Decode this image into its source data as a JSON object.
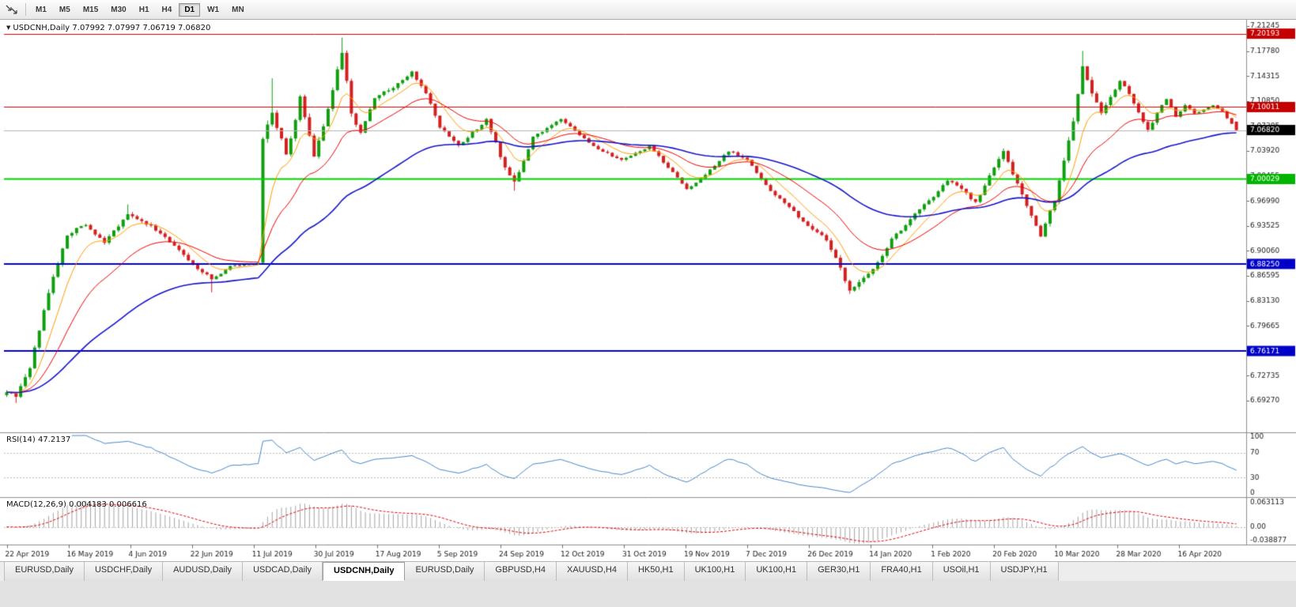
{
  "toolbar": {
    "timeframes": [
      {
        "label": "M1",
        "active": false
      },
      {
        "label": "M5",
        "active": false
      },
      {
        "label": "M15",
        "active": false
      },
      {
        "label": "M30",
        "active": false
      },
      {
        "label": "H1",
        "active": false
      },
      {
        "label": "H4",
        "active": false
      },
      {
        "label": "D1",
        "active": true
      },
      {
        "label": "W1",
        "active": false
      },
      {
        "label": "MN",
        "active": false
      }
    ]
  },
  "chart_data": {
    "type": "candlestick",
    "symbol": "USDCNH",
    "period": "Daily",
    "ohlc_title": "USDCNH,Daily 7.07992 7.07997 7.06719 7.06820",
    "ohlc": {
      "open": 7.07992,
      "high": 7.07997,
      "low": 7.06719,
      "close": 7.0682
    },
    "price_axis_ticks": [
      "7.21245",
      "7.17780",
      "7.14315",
      "7.10850",
      "7.07385",
      "7.03920",
      "7.00455",
      "6.96990",
      "6.93525",
      "6.90060",
      "6.86595",
      "6.83130",
      "6.79665",
      "6.76200",
      "6.72735",
      "6.69270"
    ],
    "price_badges": [
      {
        "text": "7.20193",
        "price": 7.20193,
        "bg": "#c40000"
      },
      {
        "text": "7.10011",
        "price": 7.10011,
        "bg": "#c40000"
      },
      {
        "text": "7.06820",
        "price": 7.0682,
        "bg": "#000000"
      },
      {
        "text": "7.00029",
        "price": 7.00029,
        "bg": "#00b400"
      },
      {
        "text": "6.88250",
        "price": 6.8825,
        "bg": "#0000c8"
      },
      {
        "text": "6.76171",
        "price": 6.76171,
        "bg": "#0000c8"
      }
    ],
    "horizontal_lines": [
      {
        "price": 7.20193,
        "color": "#d40000",
        "width": 1
      },
      {
        "price": 7.10011,
        "color": "#d40000",
        "width": 1
      },
      {
        "price": 7.00029,
        "color": "#00d400",
        "width": 2
      },
      {
        "price": 6.8825,
        "color": "#0000d4",
        "width": 2
      },
      {
        "price": 6.76171,
        "color": "#0000d4",
        "width": 2
      }
    ],
    "current_price_line": {
      "price": 7.0682,
      "color": "#b4b4b4"
    },
    "date_labels": [
      "22 Apr 2019",
      "16 May 2019",
      "4 Jun 2019",
      "22 Jun 2019",
      "11 Jul 2019",
      "30 Jul 2019",
      "17 Aug 2019",
      "5 Sep 2019",
      "24 Sep 2019",
      "12 Oct 2019",
      "31 Oct 2019",
      "19 Nov 2019",
      "7 Dec 2019",
      "26 Dec 2019",
      "14 Jan 2020",
      "1 Feb 2020",
      "20 Feb 2020",
      "10 Mar 2020",
      "28 Mar 2020",
      "16 Apr 2020"
    ],
    "candles": {
      "count": 265,
      "seed": 7,
      "up_color": "#0f9e0f",
      "down_color": "#d41f1f",
      "close_waypoints": [
        [
          0,
          6.706,
          0.005
        ],
        [
          2,
          6.699,
          0.005
        ],
        [
          5,
          6.738,
          0.006
        ],
        [
          9,
          6.845,
          0.007
        ],
        [
          13,
          6.923,
          0.005
        ],
        [
          17,
          6.938,
          0.004
        ],
        [
          21,
          6.912,
          0.004
        ],
        [
          26,
          6.952,
          0.004
        ],
        [
          31,
          6.935,
          0.004
        ],
        [
          36,
          6.907,
          0.005
        ],
        [
          40,
          6.882,
          0.004
        ],
        [
          44,
          6.861,
          0.004
        ],
        [
          48,
          6.879,
          0.002
        ],
        [
          54,
          6.884,
          0.002
        ],
        [
          55,
          7.058,
          0.007
        ],
        [
          57,
          7.095,
          0.008
        ],
        [
          60,
          7.032,
          0.008
        ],
        [
          63,
          7.112,
          0.007
        ],
        [
          66,
          7.032,
          0.007
        ],
        [
          69,
          7.098,
          0.006
        ],
        [
          72,
          7.178,
          0.006
        ],
        [
          74,
          7.092,
          0.007
        ],
        [
          76,
          7.062,
          0.006
        ],
        [
          79,
          7.112,
          0.005
        ],
        [
          83,
          7.128,
          0.004
        ],
        [
          87,
          7.148,
          0.004
        ],
        [
          90,
          7.12,
          0.004
        ],
        [
          93,
          7.072,
          0.004
        ],
        [
          97,
          7.046,
          0.004
        ],
        [
          103,
          7.083,
          0.004
        ],
        [
          107,
          7.016,
          0.005
        ],
        [
          109,
          6.996,
          0.005
        ],
        [
          113,
          7.058,
          0.004
        ],
        [
          119,
          7.084,
          0.003
        ],
        [
          126,
          7.046,
          0.003
        ],
        [
          132,
          7.026,
          0.003
        ],
        [
          138,
          7.046,
          0.003
        ],
        [
          143,
          7.009,
          0.003
        ],
        [
          146,
          6.986,
          0.003
        ],
        [
          150,
          7.006,
          0.003
        ],
        [
          155,
          7.039,
          0.003
        ],
        [
          159,
          7.028,
          0.003
        ],
        [
          163,
          6.991,
          0.003
        ],
        [
          168,
          6.961,
          0.003
        ],
        [
          172,
          6.936,
          0.004
        ],
        [
          176,
          6.916,
          0.004
        ],
        [
          179,
          6.876,
          0.005
        ],
        [
          181,
          6.846,
          0.005
        ],
        [
          183,
          6.857,
          0.005
        ],
        [
          186,
          6.874,
          0.004
        ],
        [
          190,
          6.916,
          0.004
        ],
        [
          196,
          6.958,
          0.004
        ],
        [
          199,
          6.976,
          0.004
        ],
        [
          202,
          6.999,
          0.004
        ],
        [
          205,
          6.986,
          0.004
        ],
        [
          208,
          6.967,
          0.004
        ],
        [
          211,
          7.004,
          0.004
        ],
        [
          214,
          7.038,
          0.005
        ],
        [
          217,
          6.994,
          0.005
        ],
        [
          220,
          6.948,
          0.005
        ],
        [
          222,
          6.921,
          0.005
        ],
        [
          225,
          6.972,
          0.006
        ],
        [
          227,
          7.028,
          0.006
        ],
        [
          229,
          7.082,
          0.007
        ],
        [
          231,
          7.158,
          0.006
        ],
        [
          233,
          7.118,
          0.006
        ],
        [
          235,
          7.092,
          0.005
        ],
        [
          237,
          7.112,
          0.005
        ],
        [
          239,
          7.138,
          0.004
        ],
        [
          241,
          7.118,
          0.004
        ],
        [
          243,
          7.094,
          0.004
        ],
        [
          245,
          7.068,
          0.004
        ],
        [
          247,
          7.092,
          0.004
        ],
        [
          249,
          7.112,
          0.003
        ],
        [
          251,
          7.086,
          0.003
        ],
        [
          253,
          7.102,
          0.003
        ],
        [
          255,
          7.091,
          0.003
        ],
        [
          257,
          7.097,
          0.002
        ],
        [
          259,
          7.102,
          0.002
        ],
        [
          261,
          7.094,
          0.002
        ],
        [
          264,
          7.068,
          0.002
        ]
      ],
      "high_overrides": {
        "26": 6.965,
        "57": 7.14,
        "72": 7.1965,
        "231": 7.178
      },
      "low_overrides": {
        "2": 6.6896,
        "44": 6.843,
        "109": 6.984,
        "181": 6.841
      }
    },
    "moving_averages": [
      {
        "period": 8,
        "color": "#ff9c00",
        "width": 1
      },
      {
        "period": 21,
        "color": "#f00000",
        "width": 1
      },
      {
        "period": 55,
        "color": "#1414c8",
        "width": 1.6
      }
    ],
    "rsi": {
      "label": "RSI(14) 47.2137",
      "period": 14,
      "value": 47.2137,
      "axis_ticks": [
        "100",
        "70",
        "30",
        "0"
      ],
      "levels": [
        70,
        30
      ],
      "color": "#4a86c8",
      "range": [
        0,
        100
      ]
    },
    "macd": {
      "label": "MACD(12,26,9) 0.004183 0.006616",
      "fast": 12,
      "slow": 26,
      "signal_period": 9,
      "values": [
        0.004183,
        0.006616
      ],
      "axis_ticks": [
        "0.063113",
        "0.00",
        "-0.038877"
      ],
      "range": [
        -0.038877,
        0.063113
      ],
      "histogram_color": "#a4a4a4",
      "signal_color": "#e00000"
    }
  },
  "tabbar": {
    "tabs": [
      {
        "label": "EURUSD,Daily",
        "active": false
      },
      {
        "label": "USDCHF,Daily",
        "active": false
      },
      {
        "label": "AUDUSD,Daily",
        "active": false
      },
      {
        "label": "USDCAD,Daily",
        "active": false
      },
      {
        "label": "USDCNH,Daily",
        "active": true
      },
      {
        "label": "EURUSD,Daily",
        "active": false
      },
      {
        "label": "GBPUSD,H4",
        "active": false
      },
      {
        "label": "XAUUSD,H4",
        "active": false
      },
      {
        "label": "HK50,H1",
        "active": false
      },
      {
        "label": "UK100,H1",
        "active": false
      },
      {
        "label": "UK100,H1",
        "active": false
      },
      {
        "label": "GER30,H1",
        "active": false
      },
      {
        "label": "FRA40,H1",
        "active": false
      },
      {
        "label": "USOil,H1",
        "active": false
      },
      {
        "label": "USDJPY,H1",
        "active": false
      }
    ]
  }
}
